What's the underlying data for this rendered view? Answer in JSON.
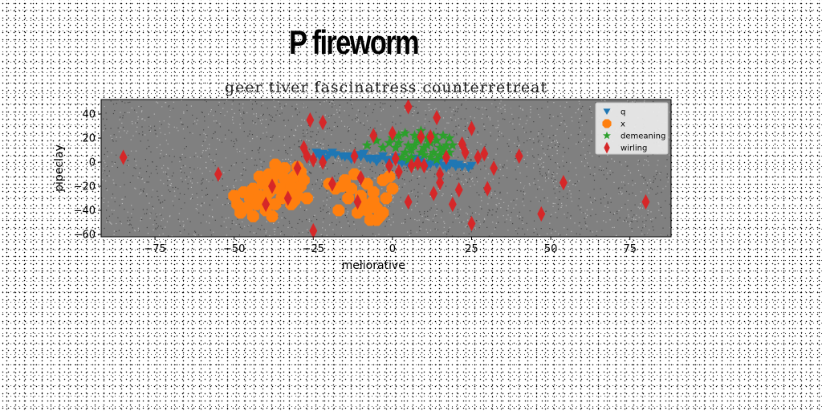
{
  "suptitle": "P fireworm",
  "chart_data": {
    "type": "scatter",
    "title": "geer tiver fascinatress counterretreat",
    "xlabel": "meliorative",
    "ylabel": "pipeclay",
    "xlim": [
      -92,
      88
    ],
    "ylim": [
      -62,
      52
    ],
    "xticks": [
      -75,
      -50,
      -25,
      0,
      25,
      50,
      75
    ],
    "yticks": [
      -60,
      -40,
      -20,
      0,
      20,
      40
    ],
    "legend_position": "top-right",
    "series": [
      {
        "name": "q",
        "marker": "triangle-down",
        "color": "#1f77b4",
        "points": [
          [
            -24,
            8
          ],
          [
            -22,
            7
          ],
          [
            -20,
            6
          ],
          [
            -18,
            6
          ],
          [
            -16,
            5
          ],
          [
            -14,
            5
          ],
          [
            -12,
            4
          ],
          [
            -10,
            4
          ],
          [
            -8,
            3
          ],
          [
            -6,
            3
          ],
          [
            -4,
            3
          ],
          [
            -2,
            2
          ],
          [
            0,
            2
          ],
          [
            2,
            1
          ],
          [
            4,
            0
          ],
          [
            6,
            0
          ],
          [
            8,
            -1
          ],
          [
            10,
            -1
          ],
          [
            12,
            -2
          ],
          [
            14,
            -2
          ],
          [
            16,
            -3
          ],
          [
            18,
            -3
          ],
          [
            20,
            -4
          ],
          [
            22,
            -4
          ],
          [
            24,
            -5
          ],
          [
            -23,
            5
          ],
          [
            -19,
            8
          ],
          [
            -15,
            4
          ],
          [
            -11,
            6
          ],
          [
            -7,
            2
          ],
          [
            -3,
            5
          ],
          [
            1,
            4
          ],
          [
            5,
            -2
          ],
          [
            9,
            2
          ],
          [
            13,
            0
          ],
          [
            17,
            -5
          ],
          [
            21,
            -2
          ],
          [
            25,
            -3
          ],
          [
            -25,
            2
          ],
          [
            -21,
            3
          ],
          [
            -13,
            2
          ],
          [
            -9,
            7
          ],
          [
            -5,
            0
          ],
          [
            3,
            -1
          ],
          [
            7,
            3
          ],
          [
            11,
            -3
          ],
          [
            15,
            1
          ],
          [
            19,
            -1
          ]
        ]
      },
      {
        "name": "x",
        "marker": "octagon",
        "color": "#ff7f0e",
        "points": [
          [
            -47,
            -25
          ],
          [
            -45,
            -30
          ],
          [
            -44,
            -22
          ],
          [
            -43,
            -35
          ],
          [
            -42,
            -28
          ],
          [
            -41,
            -18
          ],
          [
            -40,
            -40
          ],
          [
            -40,
            -30
          ],
          [
            -39,
            -25
          ],
          [
            -38,
            -15
          ],
          [
            -37,
            -35
          ],
          [
            -36,
            -22
          ],
          [
            -35,
            -10
          ],
          [
            -35,
            -30
          ],
          [
            -34,
            -5
          ],
          [
            -33,
            -18
          ],
          [
            -33,
            -25
          ],
          [
            -32,
            -35
          ],
          [
            -31,
            -12
          ],
          [
            -30,
            -28
          ],
          [
            -30,
            -4
          ],
          [
            -29,
            -20
          ],
          [
            -28,
            -15
          ],
          [
            -46,
            -38
          ],
          [
            -48,
            -42
          ],
          [
            -44,
            -45
          ],
          [
            -38,
            -45
          ],
          [
            -36,
            -8
          ],
          [
            -34,
            -14
          ],
          [
            -32,
            -20
          ],
          [
            -42,
            -12
          ],
          [
            -50,
            -28
          ],
          [
            -49,
            -35
          ],
          [
            -39,
            -10
          ],
          [
            -37,
            -2
          ],
          [
            -31,
            -32
          ],
          [
            -29,
            -8
          ],
          [
            -27,
            -30
          ],
          [
            -20,
            -18
          ],
          [
            -18,
            -22
          ],
          [
            -17,
            -40
          ],
          [
            -15,
            -15
          ],
          [
            -14,
            -30
          ],
          [
            -13,
            -22
          ],
          [
            -12,
            -10
          ],
          [
            -11,
            -42
          ],
          [
            -10,
            -28
          ],
          [
            -9,
            -35
          ],
          [
            -8,
            -18
          ],
          [
            -7,
            -48
          ],
          [
            -6,
            -25
          ],
          [
            -5,
            -38
          ],
          [
            -4,
            -45
          ],
          [
            -3,
            -15
          ],
          [
            -2,
            -30
          ],
          [
            -1,
            -12
          ],
          [
            0,
            -22
          ],
          [
            -16,
            -20
          ],
          [
            -8,
            -40
          ],
          [
            -5,
            -48
          ],
          [
            -3,
            -42
          ],
          [
            -6,
            -32
          ]
        ]
      },
      {
        "name": "demeaning",
        "marker": "star",
        "color": "#2ca02c",
        "points": [
          [
            -8,
            14
          ],
          [
            -5,
            18
          ],
          [
            -3,
            12
          ],
          [
            0,
            20
          ],
          [
            2,
            16
          ],
          [
            4,
            24
          ],
          [
            5,
            14
          ],
          [
            6,
            10
          ],
          [
            7,
            22
          ],
          [
            8,
            18
          ],
          [
            9,
            26
          ],
          [
            10,
            12
          ],
          [
            11,
            20
          ],
          [
            12,
            16
          ],
          [
            13,
            8
          ],
          [
            14,
            18
          ],
          [
            15,
            12
          ],
          [
            16,
            22
          ],
          [
            17,
            14
          ],
          [
            18,
            8
          ],
          [
            3,
            4
          ],
          [
            6,
            4
          ],
          [
            9,
            8
          ],
          [
            12,
            4
          ],
          [
            15,
            6
          ],
          [
            18,
            20
          ],
          [
            1,
            12
          ],
          [
            4,
            8
          ],
          [
            7,
            14
          ],
          [
            10,
            6
          ],
          [
            13,
            22
          ],
          [
            16,
            10
          ],
          [
            -1,
            16
          ],
          [
            2,
            22
          ],
          [
            5,
            2
          ],
          [
            8,
            -2
          ],
          [
            11,
            14
          ],
          [
            14,
            2
          ],
          [
            17,
            6
          ],
          [
            19,
            14
          ]
        ]
      },
      {
        "name": "wirling",
        "marker": "thin-diamond",
        "color": "#d62728",
        "points": [
          [
            -85,
            4
          ],
          [
            -55,
            -10
          ],
          [
            -40,
            -35
          ],
          [
            -38,
            -20
          ],
          [
            -33,
            -30
          ],
          [
            -30,
            -5
          ],
          [
            -28,
            12
          ],
          [
            -27,
            5
          ],
          [
            -26,
            35
          ],
          [
            -25,
            2
          ],
          [
            -25,
            -57
          ],
          [
            -22,
            0
          ],
          [
            -22,
            33
          ],
          [
            -19,
            -18
          ],
          [
            -12,
            5
          ],
          [
            -11,
            -33
          ],
          [
            -10,
            -13
          ],
          [
            -6,
            22
          ],
          [
            -1,
            -3
          ],
          [
            0,
            24
          ],
          [
            1,
            3
          ],
          [
            2,
            -8
          ],
          [
            5,
            -33
          ],
          [
            5,
            46
          ],
          [
            6,
            -3
          ],
          [
            8,
            -1
          ],
          [
            9,
            21
          ],
          [
            10,
            -3
          ],
          [
            12,
            21
          ],
          [
            13,
            -26
          ],
          [
            14,
            37
          ],
          [
            15,
            -17
          ],
          [
            15,
            -10
          ],
          [
            17,
            4
          ],
          [
            19,
            -35
          ],
          [
            21,
            -23
          ],
          [
            22,
            15
          ],
          [
            23,
            8
          ],
          [
            25,
            28
          ],
          [
            25,
            -51
          ],
          [
            27,
            4
          ],
          [
            29,
            7
          ],
          [
            30,
            -22
          ],
          [
            32,
            -5
          ],
          [
            40,
            5
          ],
          [
            47,
            -43
          ],
          [
            54,
            -17
          ],
          [
            80,
            -33
          ]
        ]
      }
    ]
  }
}
